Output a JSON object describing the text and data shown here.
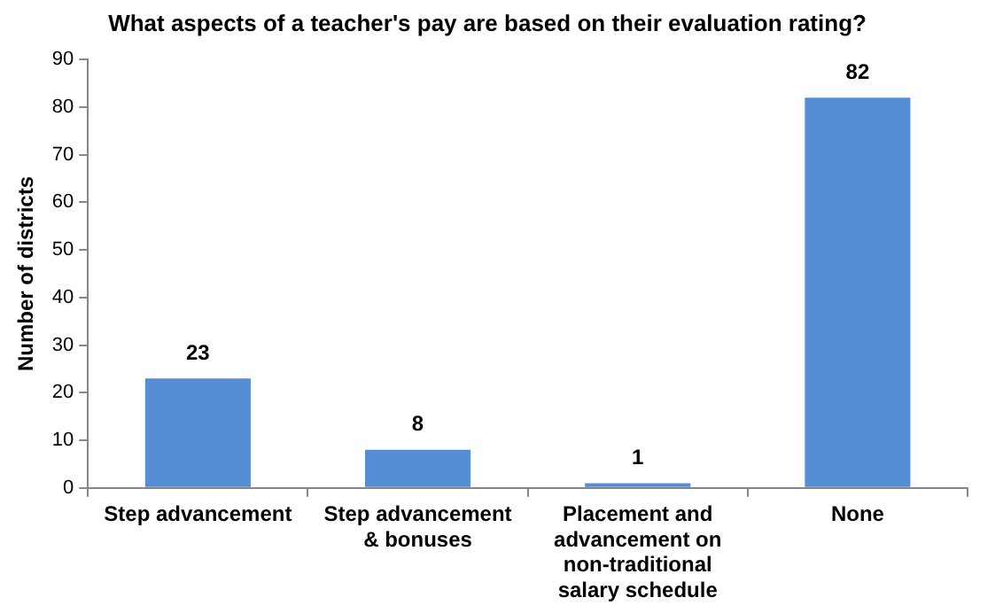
{
  "chart_data": {
    "type": "bar",
    "title": "What aspects of a teacher's pay are based on their evaluation rating?",
    "ylabel": "Number of districts",
    "categories": [
      "Step advancement",
      "Step advancement & bonuses",
      "Placement and advancement on non-traditional salary schedule",
      "None"
    ],
    "values": [
      23,
      8,
      1,
      82
    ],
    "color": "#558ed5",
    "ylim": [
      0,
      90
    ],
    "yticks": [
      0,
      10,
      20,
      30,
      40,
      50,
      60,
      70,
      80,
      90
    ],
    "grid": false,
    "legend": false,
    "data_labels": true
  }
}
